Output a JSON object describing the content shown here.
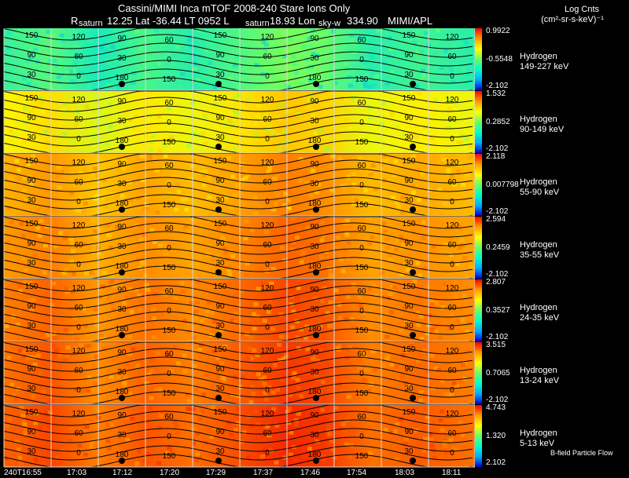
{
  "header": {
    "line1": "Cassini/MIMI Inca mTOF  2008-240   Stare   Ions Only",
    "line2_r": "R",
    "line2_mid": "12.25 Lat -36.44 LT 0952 L",
    "line2_lon": "18.93 Lon",
    "line2_val": "334.90",
    "line2_org": "MIMI/APL",
    "units_title": "Log Cnts",
    "units_line": "(cm²-sr-s-keV)⁻¹"
  },
  "markers": {
    "saturn1": "saturn",
    "saturn2": "saturn",
    "skyw": "sky-w"
  },
  "panels": [
    {
      "species": "Hydrogen",
      "energy": "149-227 keV",
      "max": "0.9922",
      "mid": "-0.5548",
      "min": "-2.102"
    },
    {
      "species": "Hydrogen",
      "energy": "90-149 keV",
      "max": "1.532",
      "mid": "0.2852",
      "min": "-2.102"
    },
    {
      "species": "Hydrogen",
      "energy": "55-90 keV",
      "max": "2.118",
      "mid": "0.007798",
      "min": "-2.102"
    },
    {
      "species": "Hydrogen",
      "energy": "35-55 keV",
      "max": "2.594",
      "mid": "0.2459",
      "min": "-2.102"
    },
    {
      "species": "Hydrogen",
      "energy": "24-35 keV",
      "max": "2.807",
      "mid": "0.3527",
      "min": "-2.102"
    },
    {
      "species": "Hydrogen",
      "energy": "13-24 keV",
      "max": "3.515",
      "mid": "0.7065",
      "min": "-2.102"
    },
    {
      "species": "Hydrogen",
      "energy": "5-13 keV",
      "max": "4.743",
      "mid": "1.320",
      "min": "2.102"
    }
  ],
  "time_axis": [
    "240T16:55",
    "17:03",
    "17:12",
    "17:20",
    "17:29",
    "17:37",
    "17:46",
    "17:54",
    "18:03",
    "18:11"
  ],
  "footer_note": "B-field Particle Flow",
  "contour_labels": [
    "180",
    "150",
    "120",
    "90",
    "60",
    "30",
    "0"
  ],
  "colors": {
    "background": "#000000",
    "grid": "#d8d8d8",
    "contour": "#000000"
  },
  "chart_data": {
    "type": "heatmap",
    "title": "Cassini/MIMI Inca mTOF  2008-240   Stare   Ions Only",
    "x_ticks": [
      "240T16:55",
      "17:03",
      "17:12",
      "17:20",
      "17:29",
      "17:37",
      "17:46",
      "17:54",
      "18:03",
      "18:11"
    ],
    "colorbar_label": "Log Cnts (cm²-sr-s-keV)⁻¹",
    "panels": [
      {
        "label": "Hydrogen 149-227 keV",
        "range": [
          -2.102,
          0.9922
        ]
      },
      {
        "label": "Hydrogen 90-149 keV",
        "range": [
          -2.102,
          1.532
        ]
      },
      {
        "label": "Hydrogen 55-90 keV",
        "range": [
          -2.102,
          2.118
        ]
      },
      {
        "label": "Hydrogen 35-55 keV",
        "range": [
          -2.102,
          2.594
        ]
      },
      {
        "label": "Hydrogen 24-35 keV",
        "range": [
          -2.102,
          2.807
        ]
      },
      {
        "label": "Hydrogen 13-24 keV",
        "range": [
          -2.102,
          3.515
        ]
      },
      {
        "label": "Hydrogen 5-13 keV",
        "range": [
          2.102,
          4.743
        ]
      }
    ],
    "pitch_angle_contours": [
      0,
      30,
      60,
      90,
      120,
      150,
      180
    ],
    "colorscale": [
      "#0000cc",
      "#00aaff",
      "#00ffcc",
      "#66ff66",
      "#ffff00",
      "#ff9900",
      "#ff0000"
    ]
  }
}
